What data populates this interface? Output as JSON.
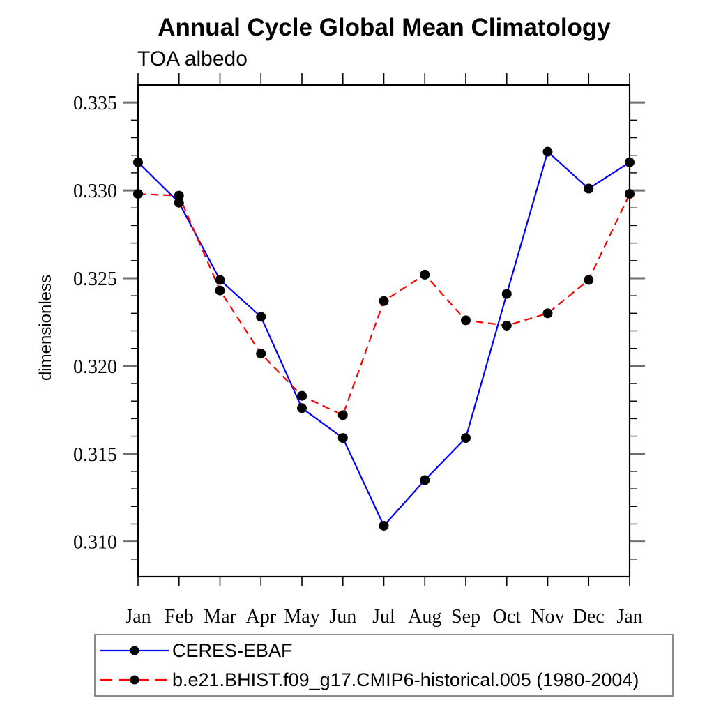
{
  "chart_data": {
    "type": "line",
    "title": "Annual Cycle Global Mean Climatology",
    "subtitle": "TOA albedo",
    "ylabel": "dimensionless",
    "xlabel": "",
    "categories": [
      "Jan",
      "Feb",
      "Mar",
      "Apr",
      "May",
      "Jun",
      "Jul",
      "Aug",
      "Sep",
      "Oct",
      "Nov",
      "Dec",
      "Jan"
    ],
    "ylim": [
      0.308,
      0.336
    ],
    "ytick_major": [
      0.31,
      0.315,
      0.32,
      0.325,
      0.33,
      0.335
    ],
    "ytick_major_labels": [
      "0.310",
      "0.315",
      "0.320",
      "0.325",
      "0.330",
      "0.335"
    ],
    "ytick_minor_step": 0.001,
    "grid": false,
    "legend_position": "below-left",
    "axis_color": "#000000",
    "major_tick_color": "#6e6e6e",
    "series": [
      {
        "name": "CERES-EBAF",
        "color": "#0000ff",
        "line_style": "solid",
        "marker": "circle",
        "marker_color": "#000000",
        "values": [
          0.3316,
          0.3293,
          0.3249,
          0.3228,
          0.3176,
          0.3159,
          0.3109,
          0.3135,
          0.3159,
          0.3241,
          0.3322,
          0.3301,
          0.3316
        ]
      },
      {
        "name": "b.e21.BHIST.f09_g17.CMIP6-historical.005 (1980-2004)",
        "color": "#ff0000",
        "line_style": "dashed",
        "marker": "circle",
        "marker_color": "#000000",
        "values": [
          0.3298,
          0.3297,
          0.3243,
          0.3207,
          0.3183,
          0.3172,
          0.3237,
          0.3252,
          0.3226,
          0.3223,
          0.323,
          0.3249,
          0.3298
        ]
      }
    ]
  }
}
